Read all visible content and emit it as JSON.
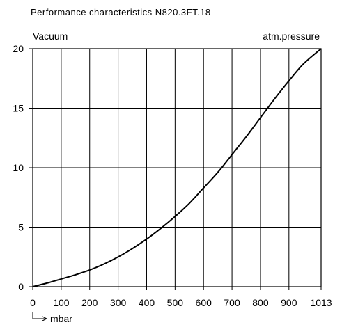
{
  "chart_data": {
    "type": "line",
    "title": "Performance characteristics N820.3FT.18",
    "left_caption": "Vacuum",
    "right_caption": "atm.pressure",
    "xlabel": "mbar",
    "x_ticks": [
      0,
      100,
      200,
      300,
      400,
      500,
      600,
      700,
      800,
      900,
      1013
    ],
    "y_ticks": [
      0,
      5,
      10,
      15,
      20
    ],
    "xlim": [
      0,
      1013
    ],
    "ylim": [
      0,
      20
    ],
    "grid": true,
    "series": [
      {
        "x": [
          0,
          50,
          100,
          150,
          200,
          250,
          300,
          350,
          400,
          450,
          500,
          550,
          600,
          650,
          700,
          750,
          800,
          850,
          900,
          950,
          1013
        ],
        "values": [
          0,
          0.3,
          0.65,
          1.0,
          1.4,
          1.9,
          2.5,
          3.2,
          4.0,
          4.9,
          5.9,
          7.0,
          8.3,
          9.6,
          11.1,
          12.6,
          14.2,
          15.8,
          17.3,
          18.7,
          20
        ]
      }
    ]
  }
}
